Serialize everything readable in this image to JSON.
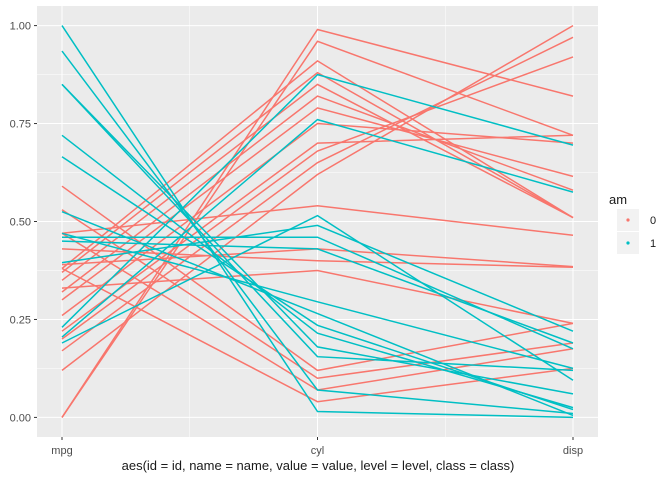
{
  "chart_data": {
    "type": "line",
    "chart_kind": "parallel-coordinates",
    "title": "",
    "xlabel": "aes(id = id, name = name, value = value, level = level, class = class)",
    "ylabel": "",
    "categories": [
      "mpg",
      "cyl",
      "disp"
    ],
    "ylim": [
      -0.05,
      1.05
    ],
    "yticks": [
      "0.00",
      "0.25",
      "0.50",
      "0.75",
      "1.00"
    ],
    "ytick_values": [
      0,
      0.25,
      0.5,
      0.75,
      1
    ],
    "grid": true,
    "legend": {
      "title": "am",
      "position": "right",
      "items": [
        {
          "label": "0",
          "color": "#F8766D"
        },
        {
          "label": "1",
          "color": "#00BFC4"
        }
      ]
    },
    "colors": {
      "0": "#F8766D",
      "1": "#00BFC4"
    },
    "series": [
      {
        "group": "0",
        "values": [
          0.47,
          0.54,
          0.465
        ]
      },
      {
        "group": "0",
        "values": [
          0.43,
          0.4,
          0.383
        ]
      },
      {
        "group": "0",
        "values": [
          0.39,
          0.43,
          0.385
        ]
      },
      {
        "group": "0",
        "values": [
          0.33,
          0.375,
          0.24
        ]
      },
      {
        "group": "0",
        "values": [
          0.0,
          0.99,
          0.82
        ]
      },
      {
        "group": "0",
        "values": [
          0.0,
          0.96,
          0.72
        ]
      },
      {
        "group": "0",
        "values": [
          0.12,
          0.62,
          1.0
        ]
      },
      {
        "group": "0",
        "values": [
          0.17,
          0.65,
          0.97
        ]
      },
      {
        "group": "0",
        "values": [
          0.2,
          0.68,
          0.92
        ]
      },
      {
        "group": "0",
        "values": [
          0.22,
          0.7,
          0.72
        ]
      },
      {
        "group": "0",
        "values": [
          0.26,
          0.75,
          0.7
        ]
      },
      {
        "group": "0",
        "values": [
          0.3,
          0.79,
          0.615
        ]
      },
      {
        "group": "0",
        "values": [
          0.32,
          0.82,
          0.58
        ]
      },
      {
        "group": "0",
        "values": [
          0.35,
          0.85,
          0.51
        ]
      },
      {
        "group": "0",
        "values": [
          0.37,
          0.88,
          0.51
        ]
      },
      {
        "group": "0",
        "values": [
          0.38,
          0.91,
          0.51
        ]
      },
      {
        "group": "0",
        "values": [
          0.59,
          0.12,
          0.24
        ]
      },
      {
        "group": "0",
        "values": [
          0.53,
          0.1,
          0.19
        ]
      },
      {
        "group": "0",
        "values": [
          0.47,
          0.07,
          0.175
        ]
      },
      {
        "group": "0",
        "values": [
          0.38,
          0.04,
          0.125
        ]
      },
      {
        "group": "1",
        "values": [
          1.0,
          0.015,
          0.0
        ]
      },
      {
        "group": "1",
        "values": [
          0.935,
          0.07,
          0.01
        ]
      },
      {
        "group": "1",
        "values": [
          0.85,
          0.155,
          0.12
        ]
      },
      {
        "group": "1",
        "values": [
          0.85,
          0.18,
          0.06
        ]
      },
      {
        "group": "1",
        "values": [
          0.72,
          0.215,
          0.025
        ]
      },
      {
        "group": "1",
        "values": [
          0.665,
          0.235,
          0.02
        ]
      },
      {
        "group": "1",
        "values": [
          0.525,
          0.265,
          0.005
        ]
      },
      {
        "group": "1",
        "values": [
          0.47,
          0.295,
          0.125
        ]
      },
      {
        "group": "1",
        "values": [
          0.46,
          0.46,
          0.175
        ]
      },
      {
        "group": "1",
        "values": [
          0.45,
          0.43,
          0.19
        ]
      },
      {
        "group": "1",
        "values": [
          0.395,
          0.49,
          0.22
        ]
      },
      {
        "group": "1",
        "values": [
          0.23,
          0.875,
          0.695
        ]
      },
      {
        "group": "1",
        "values": [
          0.205,
          0.76,
          0.575
        ]
      },
      {
        "group": "1",
        "values": [
          0.19,
          0.515,
          0.095
        ]
      }
    ]
  }
}
